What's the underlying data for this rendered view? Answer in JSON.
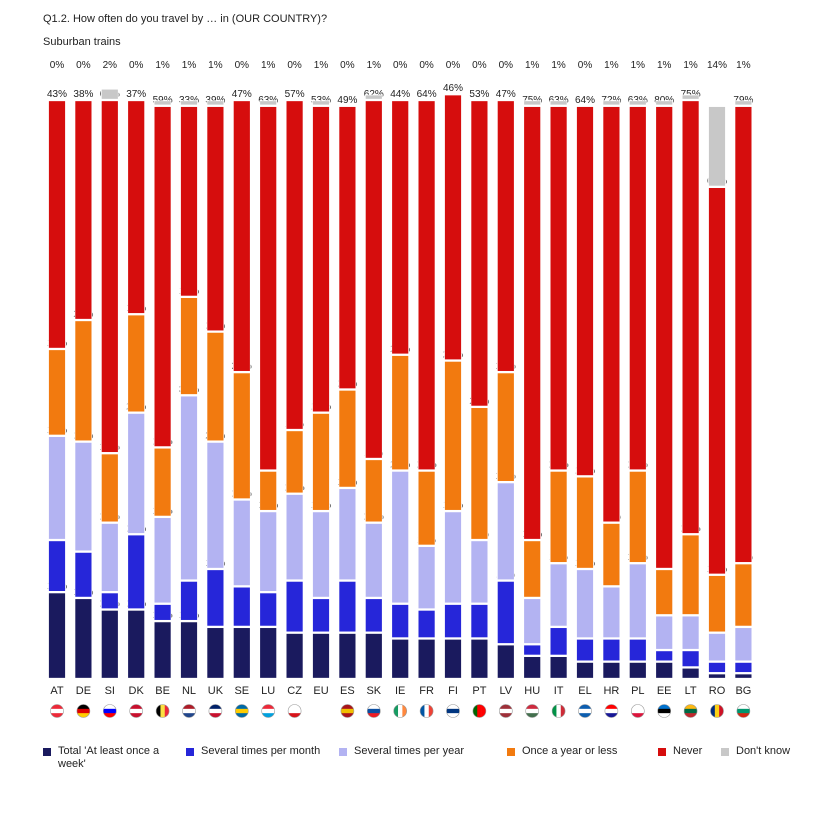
{
  "header": {
    "title": "Q1.2. How often do you travel by … in (OUR COUNTRY)?",
    "subtitle": "Suburban trains"
  },
  "chart_data": {
    "type": "bar",
    "stacked": true,
    "orientation": "vertical",
    "unit": "%",
    "ylim": [
      0,
      100
    ],
    "categories": [
      "AT",
      "DE",
      "SI",
      "DK",
      "BE",
      "NL",
      "UK",
      "SE",
      "LU",
      "CZ",
      "EU",
      "ES",
      "SK",
      "IE",
      "FR",
      "FI",
      "PT",
      "LV",
      "HU",
      "IT",
      "EL",
      "HR",
      "PL",
      "EE",
      "LT",
      "RO",
      "BG"
    ],
    "series": [
      {
        "name": "Total 'At least once a week'",
        "color": "#1a1a5e",
        "values": [
          15,
          14,
          12,
          12,
          10,
          10,
          9,
          9,
          9,
          8,
          8,
          8,
          8,
          7,
          7,
          7,
          7,
          6,
          4,
          4,
          3,
          3,
          3,
          3,
          2,
          1,
          1
        ]
      },
      {
        "name": "Several times per month",
        "color": "#2626d9",
        "values": [
          9,
          8,
          3,
          13,
          3,
          7,
          10,
          7,
          6,
          9,
          6,
          9,
          6,
          6,
          5,
          6,
          6,
          11,
          2,
          5,
          4,
          4,
          4,
          2,
          3,
          2,
          2
        ]
      },
      {
        "name": "Several times per year",
        "color": "#b3b3f2",
        "values": [
          18,
          19,
          12,
          21,
          15,
          32,
          22,
          15,
          14,
          15,
          15,
          16,
          13,
          23,
          11,
          16,
          11,
          17,
          8,
          11,
          12,
          9,
          13,
          6,
          6,
          5,
          6
        ]
      },
      {
        "name": "Once a year or less",
        "color": "#f27a0f",
        "values": [
          15,
          21,
          12,
          17,
          12,
          17,
          19,
          22,
          7,
          11,
          17,
          17,
          11,
          20,
          13,
          26,
          23,
          19,
          10,
          16,
          16,
          11,
          16,
          8,
          14,
          10,
          11
        ]
      },
      {
        "name": "Never",
        "color": "#d60d0d",
        "values": [
          43,
          38,
          61,
          37,
          59,
          33,
          39,
          47,
          63,
          57,
          53,
          49,
          62,
          44,
          64,
          46,
          53,
          47,
          75,
          63,
          64,
          72,
          63,
          80,
          75,
          67,
          79
        ]
      },
      {
        "name": "Don't know",
        "color": "#c8c8c8",
        "values": [
          0,
          0,
          2,
          0,
          1,
          1,
          1,
          0,
          1,
          0,
          1,
          0,
          1,
          0,
          0,
          0,
          0,
          0,
          1,
          1,
          0,
          1,
          1,
          1,
          1,
          14,
          1
        ]
      }
    ],
    "flags": {
      "AT": [
        "#ed2939",
        "#ffffff",
        "#ed2939"
      ],
      "DE": [
        "#000000",
        "#dd0000",
        "#ffce00"
      ],
      "SI": [
        "#ffffff",
        "#0000ff",
        "#ff0000"
      ],
      "DK": [
        "#c8102e",
        "#ffffff",
        "#c8102e"
      ],
      "BE": [
        "#000000",
        "#fae042",
        "#ed2939"
      ],
      "NL": [
        "#ae1c28",
        "#ffffff",
        "#21468b"
      ],
      "UK": [
        "#012169",
        "#ffffff",
        "#c8102e"
      ],
      "SE": [
        "#006aa7",
        "#fecc00",
        "#006aa7"
      ],
      "LU": [
        "#ed2939",
        "#ffffff",
        "#00a1de"
      ],
      "CZ": [
        "#ffffff",
        "#ffffff",
        "#d7141a"
      ],
      "EU": [
        "#ffffff",
        "#ffffff",
        "#ffffff"
      ],
      "ES": [
        "#aa151b",
        "#f1bf00",
        "#aa151b"
      ],
      "SK": [
        "#ffffff",
        "#0b4ea2",
        "#ee1c25"
      ],
      "IE": [
        "#169b62",
        "#ffffff",
        "#ff883e"
      ],
      "FR": [
        "#0055a4",
        "#ffffff",
        "#ef4135"
      ],
      "FI": [
        "#ffffff",
        "#003580",
        "#ffffff"
      ],
      "PT": [
        "#006600",
        "#ff0000",
        "#ff0000"
      ],
      "LV": [
        "#9e3039",
        "#ffffff",
        "#9e3039"
      ],
      "HU": [
        "#cd2a3e",
        "#ffffff",
        "#436f4d"
      ],
      "IT": [
        "#009246",
        "#ffffff",
        "#ce2b37"
      ],
      "EL": [
        "#0d5eaf",
        "#ffffff",
        "#0d5eaf"
      ],
      "HR": [
        "#ff0000",
        "#ffffff",
        "#171796"
      ],
      "PL": [
        "#ffffff",
        "#ffffff",
        "#dc143c"
      ],
      "EE": [
        "#0072ce",
        "#000000",
        "#ffffff"
      ],
      "LT": [
        "#fdb913",
        "#006a44",
        "#c1272d"
      ],
      "RO": [
        "#002b7f",
        "#fcd116",
        "#ce1126"
      ],
      "BG": [
        "#ffffff",
        "#00966e",
        "#d62612"
      ]
    }
  }
}
